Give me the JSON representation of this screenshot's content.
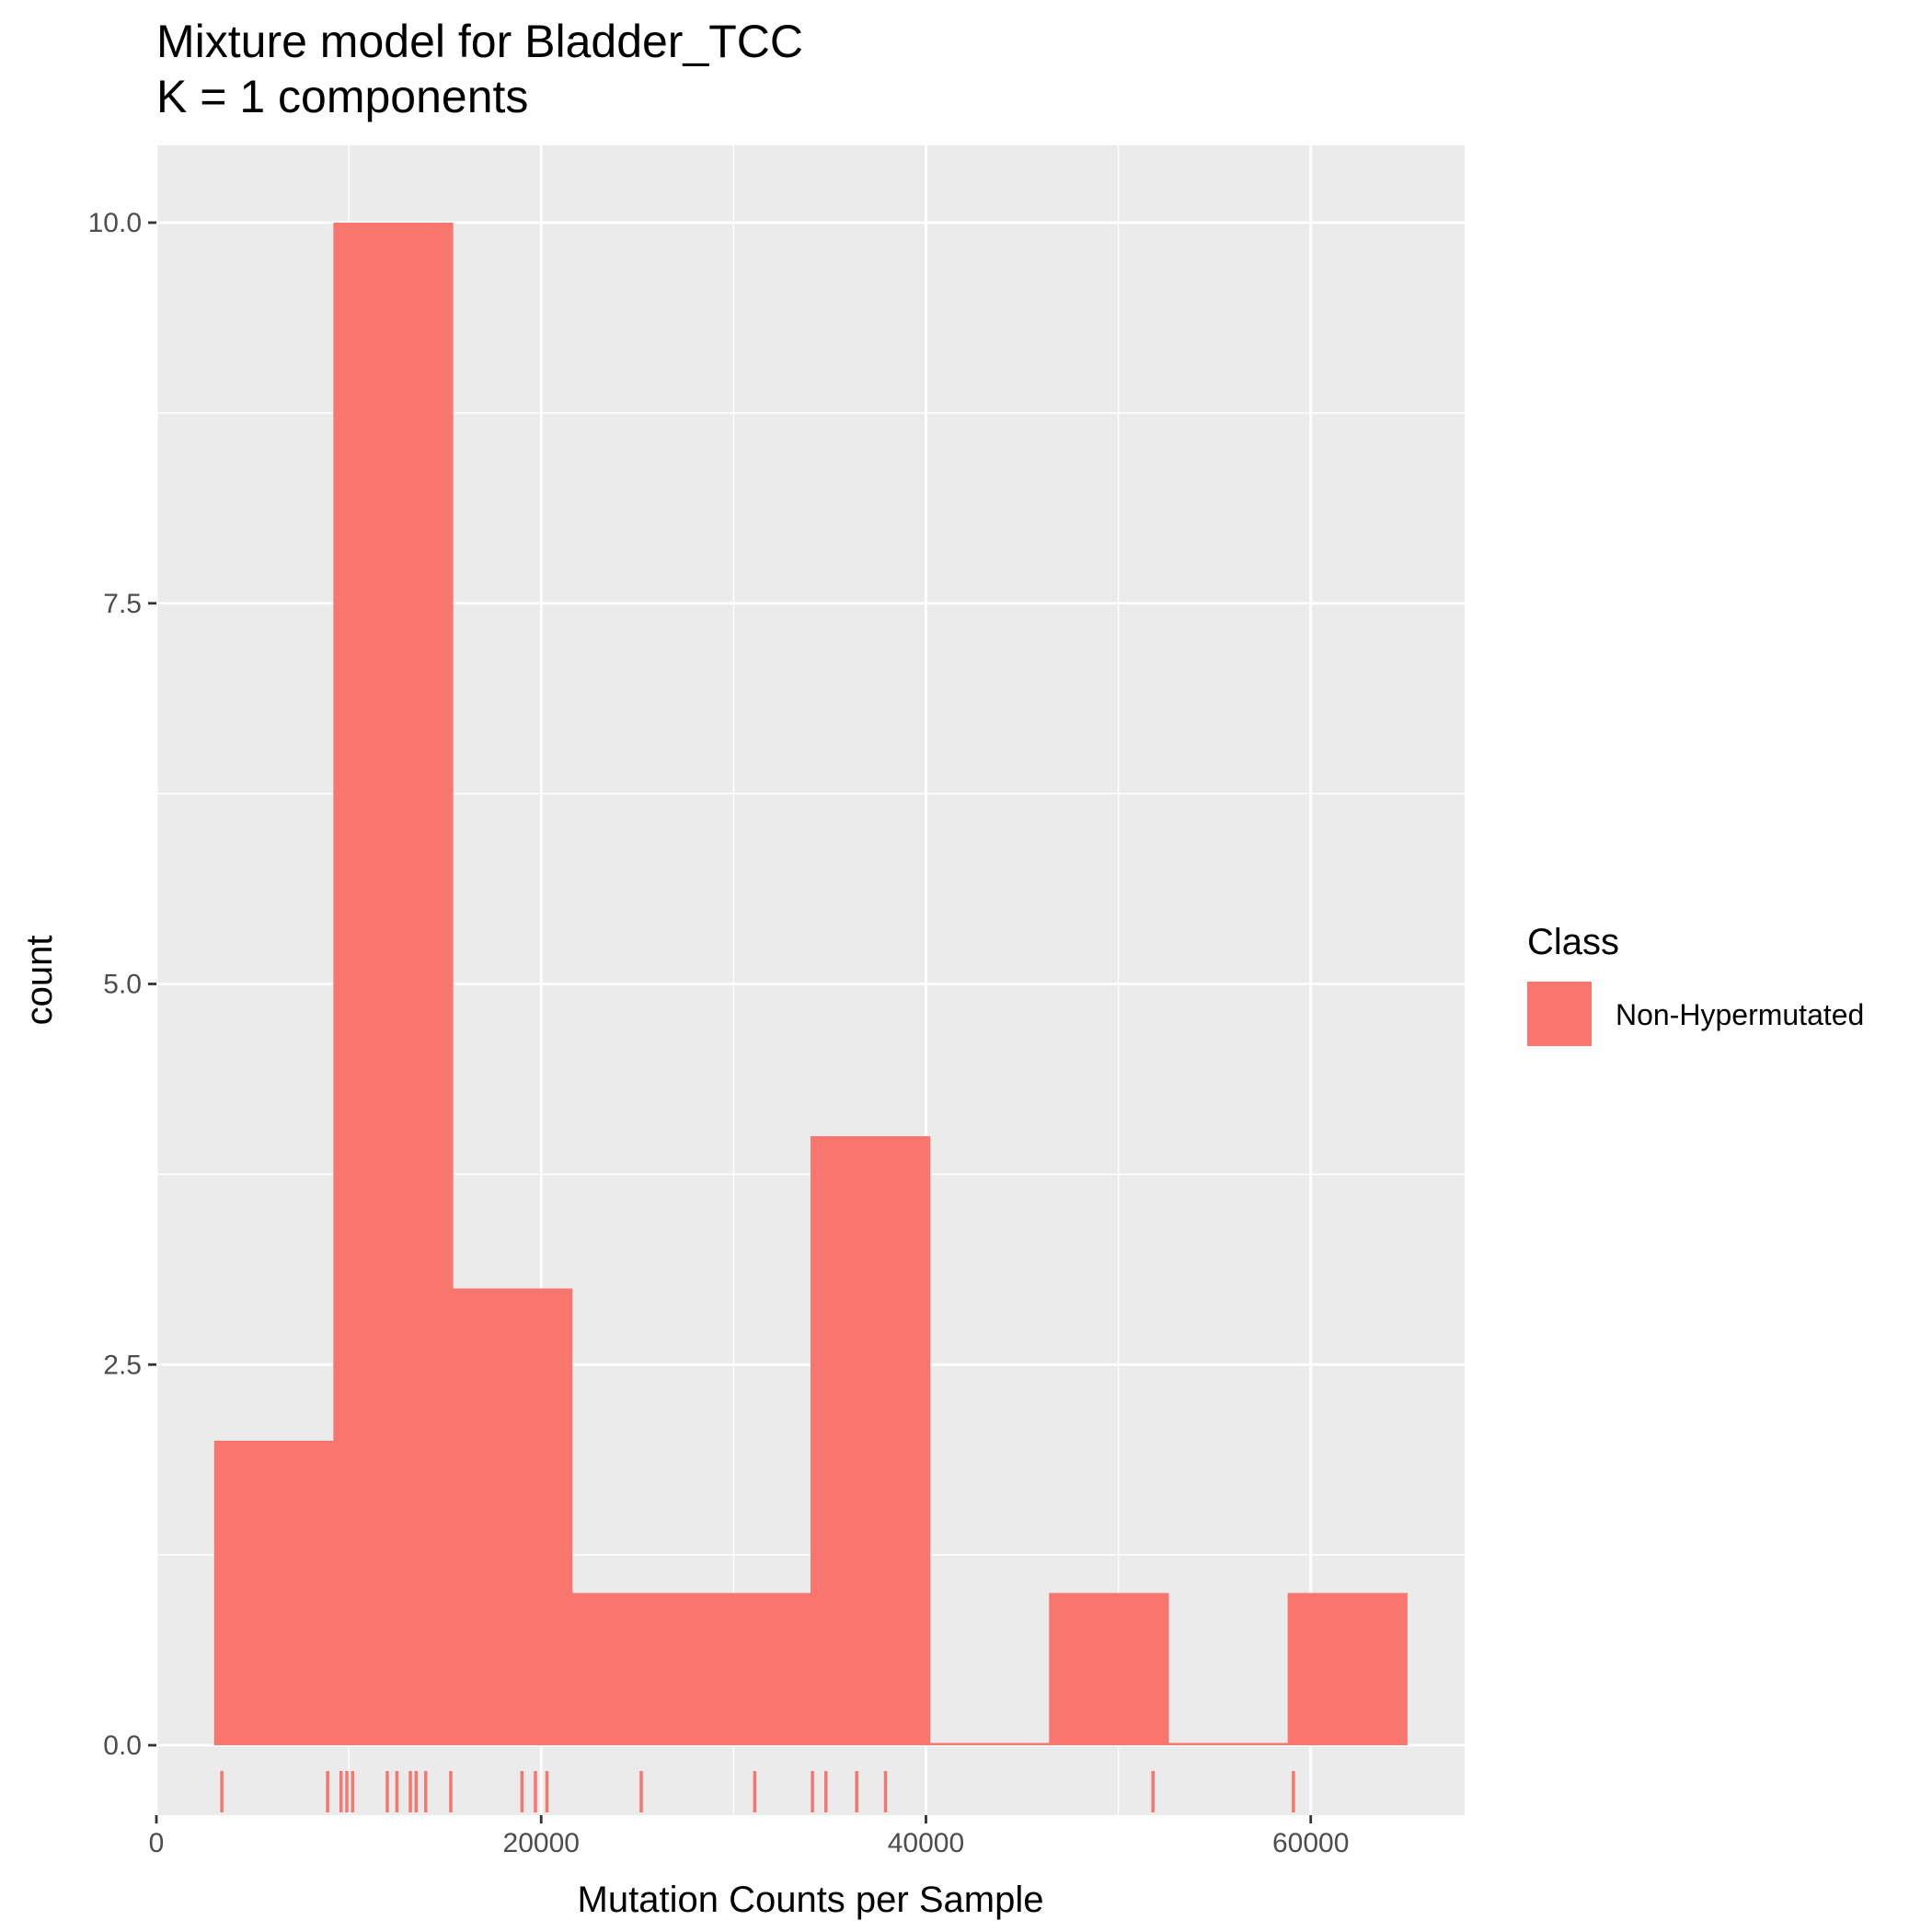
{
  "chart_data": {
    "type": "bar",
    "title": "Mixture model for Bladder_TCC",
    "subtitle": "K = 1 components",
    "xlabel": "Mutation Counts per Sample",
    "ylabel": "count",
    "xlim": [
      0,
      68000
    ],
    "ylim": [
      -0.4,
      10.5
    ],
    "x_ticks": [
      0,
      20000,
      40000,
      60000
    ],
    "x_tick_labels": [
      "0",
      "20000",
      "40000",
      "60000"
    ],
    "y_ticks": [
      0,
      2.5,
      5,
      7.5,
      10
    ],
    "y_tick_labels": [
      "0.0",
      "2.5",
      "5.0",
      "7.5",
      "10.0"
    ],
    "grid": true,
    "legend": {
      "title": "Class",
      "placement": "right",
      "entries": [
        {
          "label": "Non-Hypermutated",
          "color": "#F8766D"
        }
      ]
    },
    "bins": [
      {
        "x0": 3000,
        "x1": 9200,
        "count": 2
      },
      {
        "x0": 9200,
        "x1": 15400,
        "count": 10
      },
      {
        "x0": 15400,
        "x1": 21600,
        "count": 3
      },
      {
        "x0": 21600,
        "x1": 27800,
        "count": 1
      },
      {
        "x0": 27800,
        "x1": 34000,
        "count": 1
      },
      {
        "x0": 34000,
        "x1": 40200,
        "count": 4
      },
      {
        "x0": 40200,
        "x1": 46400,
        "count": 0
      },
      {
        "x0": 46400,
        "x1": 52600,
        "count": 1
      },
      {
        "x0": 52600,
        "x1": 58800,
        "count": 0
      },
      {
        "x0": 58800,
        "x1": 65000,
        "count": 1
      }
    ],
    "rug": [
      3400,
      8900,
      9600,
      9900,
      10200,
      12000,
      12500,
      13200,
      13500,
      14000,
      15300,
      19000,
      19700,
      20300,
      25200,
      31100,
      34100,
      34800,
      36400,
      37900,
      51800,
      59100
    ],
    "series_color": "#F8766D"
  }
}
